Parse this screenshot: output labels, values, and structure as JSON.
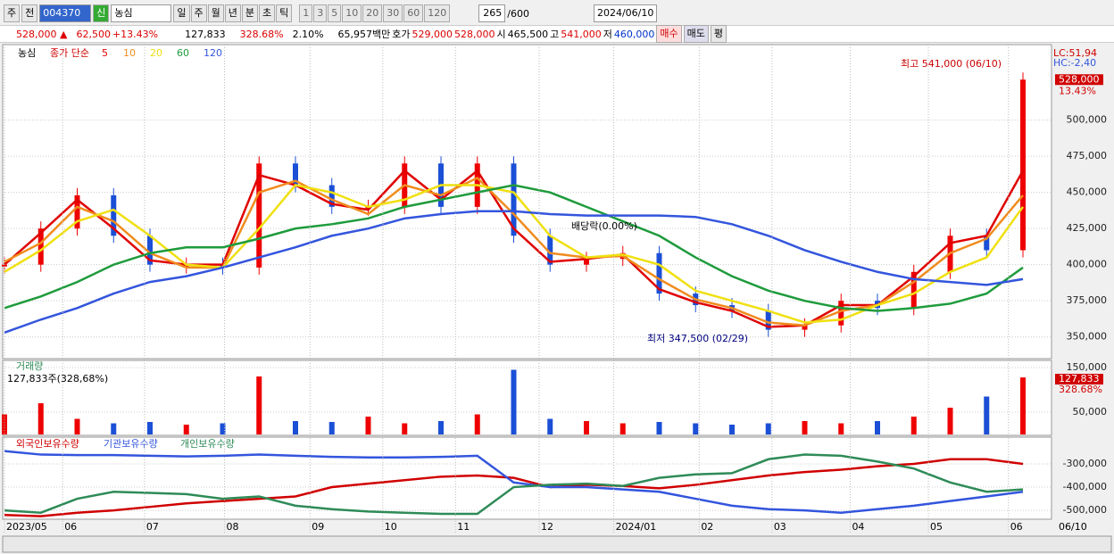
{
  "toolbar": {
    "market": "주",
    "prev": "전",
    "code": "004370",
    "credit": "신",
    "name": "농심",
    "periods": [
      "일",
      "주",
      "월",
      "년",
      "분",
      "초",
      "틱"
    ],
    "intervals": [
      "1",
      "3",
      "5",
      "10",
      "20",
      "30",
      "60",
      "120"
    ],
    "count": "265",
    "total": "/600",
    "date": "2024/06/10"
  },
  "quote": {
    "price": "528,000 ▲",
    "change": "62,500",
    "rate": "+13.43%",
    "volume": "127,833",
    "vol_ratio": "328.68%",
    "turnover": "2.10%",
    "amount": "65,957백만",
    "bid_label": "호가",
    "ask": "529,000",
    "bid": "528,000",
    "open_label": "시",
    "open": "465,500",
    "high_label": "고",
    "high": "541,000",
    "low_label": "저",
    "low": "460,000",
    "buy": "매수",
    "sell": "매도",
    "avg": "평"
  },
  "chart_data": [
    {
      "type": "line",
      "title": "농심",
      "ma_label": "종가 단순",
      "lc": "LC:51,94",
      "hc": "HC:-2,40",
      "close": [
        400000,
        425000,
        448000,
        420000,
        400000,
        400000,
        398000,
        470000,
        455000,
        440000,
        440000,
        470000,
        440000,
        470000,
        420000,
        400000,
        404000,
        408000,
        380000,
        372000,
        368000,
        355000,
        358000,
        375000,
        370000,
        395000,
        420000,
        410000,
        528000
      ],
      "series": [
        {
          "name": "5",
          "color": "#e00000",
          "values": [
            400000,
            422000,
            445000,
            425000,
            403000,
            400000,
            400000,
            462000,
            455000,
            442000,
            438000,
            465000,
            445000,
            465000,
            425000,
            402000,
            404000,
            407000,
            383000,
            374000,
            368000,
            357000,
            358000,
            372000,
            372000,
            392000,
            415000,
            420000,
            465000
          ]
        },
        {
          "name": "10",
          "color": "#f08c1e",
          "values": [
            402000,
            415000,
            440000,
            430000,
            408000,
            398000,
            398000,
            450000,
            458000,
            445000,
            435000,
            455000,
            448000,
            460000,
            435000,
            408000,
            405000,
            406000,
            390000,
            376000,
            370000,
            360000,
            358000,
            368000,
            372000,
            388000,
            408000,
            418000,
            448000
          ]
        },
        {
          "name": "20",
          "color": "#f0e010",
          "values": [
            395000,
            410000,
            430000,
            438000,
            420000,
            400000,
            398000,
            425000,
            455000,
            450000,
            440000,
            445000,
            455000,
            455000,
            450000,
            420000,
            405000,
            407000,
            400000,
            382000,
            375000,
            368000,
            360000,
            362000,
            372000,
            380000,
            395000,
            405000,
            440000
          ]
        },
        {
          "name": "60",
          "color": "#1e9b3c",
          "values": [
            370000,
            378000,
            388000,
            400000,
            408000,
            412000,
            412000,
            418000,
            425000,
            428000,
            432000,
            440000,
            445000,
            450000,
            455000,
            450000,
            440000,
            430000,
            420000,
            405000,
            392000,
            382000,
            375000,
            370000,
            368000,
            370000,
            373000,
            380000,
            398000
          ]
        },
        {
          "name": "120",
          "color": "#3355dd",
          "values": [
            353000,
            362000,
            370000,
            380000,
            388000,
            392000,
            398000,
            405000,
            412000,
            420000,
            425000,
            432000,
            435000,
            437000,
            437000,
            435000,
            434000,
            434000,
            434000,
            433000,
            428000,
            420000,
            410000,
            402000,
            395000,
            390000,
            388000,
            386000,
            390000
          ]
        }
      ],
      "ylim": [
        335000,
        551000
      ],
      "yticks": [
        {
          "value": 350000,
          "label": "350,000"
        },
        {
          "value": 375000,
          "label": "375,000"
        },
        {
          "value": 400000,
          "label": "400,000"
        },
        {
          "value": 425000,
          "label": "425,000"
        },
        {
          "value": 450000,
          "label": "450,000"
        },
        {
          "value": 475000,
          "label": "475,000"
        },
        {
          "value": 500000,
          "label": "500,000"
        }
      ],
      "grid": true,
      "last_value": 528000,
      "last_label": "528,000",
      "last_rate": "13.43%",
      "annotations": [
        "최고 541,000 (06/10)",
        "배당락(0.00%)",
        "최저 347,500 (02/29)"
      ]
    },
    {
      "type": "bar",
      "title": "거래량",
      "subtitle": "127,833주(328,68%)",
      "values": [
        45000,
        70000,
        35000,
        25000,
        28000,
        22000,
        25000,
        130000,
        30000,
        28000,
        40000,
        25000,
        30000,
        45000,
        145000,
        35000,
        30000,
        25000,
        28000,
        25000,
        22000,
        25000,
        30000,
        25000,
        30000,
        40000,
        60000,
        85000,
        127833
      ],
      "ylim": [
        0,
        150000
      ],
      "yticks": [
        {
          "value": 50000,
          "label": "50,000"
        },
        {
          "value": 150000,
          "label": "150,000"
        }
      ],
      "last_label": "127,833",
      "last_rate": "328.68%"
    },
    {
      "type": "line",
      "series": [
        {
          "name": "외국인보유수량",
          "color": "#d00000",
          "values": [
            -520000,
            -525000,
            -510000,
            -500000,
            -485000,
            -470000,
            -460000,
            -450000,
            -440000,
            -400000,
            -385000,
            -370000,
            -355000,
            -350000,
            -360000,
            -400000,
            -390000,
            -395000,
            -405000,
            -390000,
            -370000,
            -350000,
            -335000,
            -325000,
            -310000,
            -300000,
            -280000,
            -280000,
            -300000
          ]
        },
        {
          "name": "기관보유수량",
          "color": "#3355dd",
          "values": [
            -245000,
            -260000,
            -262000,
            -262000,
            -265000,
            -268000,
            -265000,
            -260000,
            -265000,
            -270000,
            -272000,
            -272000,
            -270000,
            -265000,
            -380000,
            -400000,
            -400000,
            -410000,
            -420000,
            -450000,
            -480000,
            -495000,
            -500000,
            -510000,
            -495000,
            -480000,
            -460000,
            -440000,
            -420000
          ]
        },
        {
          "name": "개인보유수량",
          "color": "#2e8b57",
          "values": [
            -500000,
            -510000,
            -450000,
            -420000,
            -425000,
            -430000,
            -450000,
            -440000,
            -480000,
            -495000,
            -505000,
            -510000,
            -515000,
            -515000,
            -400000,
            -390000,
            -385000,
            -395000,
            -360000,
            -345000,
            -340000,
            -280000,
            -260000,
            -265000,
            -290000,
            -320000,
            -380000,
            -420000,
            -410000
          ]
        }
      ],
      "ylim": [
        -538000,
        -192600
      ],
      "yticks": [
        {
          "value": -300000,
          "label": "-300,000"
        },
        {
          "value": -400000,
          "label": "-400,000"
        },
        {
          "value": -500000,
          "label": "-500,000"
        }
      ],
      "xticks": [
        {
          "value": 0,
          "label": "2023/05"
        },
        {
          "value": 1.6,
          "label": "06"
        },
        {
          "value": 3.85,
          "label": "07"
        },
        {
          "value": 6.05,
          "label": "08"
        },
        {
          "value": 8.4,
          "label": "09"
        },
        {
          "value": 10.4,
          "label": "10"
        },
        {
          "value": 12.4,
          "label": "11"
        },
        {
          "value": 14.7,
          "label": "12"
        },
        {
          "value": 16.75,
          "label": "2024/01"
        },
        {
          "value": 19.1,
          "label": "02"
        },
        {
          "value": 21.1,
          "label": "03"
        },
        {
          "value": 23.25,
          "label": "04"
        },
        {
          "value": 25.4,
          "label": "05"
        },
        {
          "value": 27.6,
          "label": "06"
        }
      ],
      "xend": "06/10"
    }
  ]
}
